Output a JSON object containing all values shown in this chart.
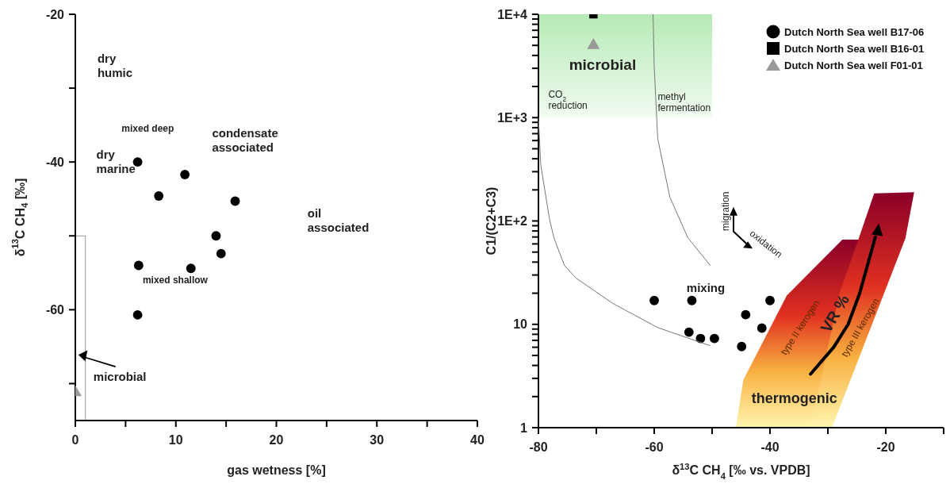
{
  "chart_data": [
    {
      "type": "scatter",
      "xlabel": "gas wetness [%]",
      "ylabel": "δ$^{13}$C CH$_{4}$ [‰]",
      "xlim": [
        0,
        40
      ],
      "xticks": [
        0,
        {
          "value": 5,
          "label": null
        },
        10,
        {
          "value": 15,
          "label": null
        },
        20,
        {
          "value": 25,
          "label": null
        },
        30,
        {
          "value": 35,
          "label": null
        },
        40
      ],
      "ylim": [
        -75,
        -20
      ],
      "yticks": [
        -20,
        {
          "value": -30,
          "label": null
        },
        -40,
        {
          "value": -50,
          "label": null
        },
        -60,
        {
          "value": -70,
          "label": null
        }
      ],
      "annotations": [
        "dry\nhumic",
        "mixed deep",
        "dry\nmarine",
        "condensate\nassociated",
        "oil\nassociated",
        "mixed shallow",
        "microbial"
      ],
      "series": [
        {
          "color": "#000000",
          "marker": "circle",
          "x": [
            6.2,
            10.9,
            8.3,
            15.9,
            14.0,
            14.5,
            6.3,
            11.5,
            6.2
          ],
          "values": [
            -40,
            -41.7,
            -44.6,
            -45.3,
            -50,
            -52.4,
            -54,
            -54.4,
            -60.7
          ]
        },
        {
          "color": "#999999",
          "marker": "triangle",
          "x": [
            0
          ],
          "values": [
            -71.2
          ]
        }
      ]
    },
    {
      "type": "scatter",
      "xlabel": "δ$^{13}$C CH$_{4}$ [‰ vs. VPDB]",
      "ylabel": "C1/(C2+C3)",
      "log": "y",
      "legend": "top right",
      "xlim": [
        -80,
        -10
      ],
      "xticks": [
        -80,
        {
          "value": -70,
          "label": null
        },
        -60,
        {
          "value": -50,
          "label": null
        },
        -40,
        {
          "value": -30,
          "label": null
        },
        -20,
        {
          "value": -10,
          "label": null
        }
      ],
      "ylim": [
        1,
        10000
      ],
      "yticks": [
        1,
        {
          "value": 2,
          "label": null
        },
        {
          "value": 3,
          "label": null
        },
        {
          "value": 4,
          "label": null
        },
        {
          "value": 5,
          "label": null
        },
        {
          "value": 6,
          "label": null
        },
        {
          "value": 7,
          "label": null
        },
        {
          "value": 8,
          "label": null
        },
        {
          "value": 9,
          "label": null
        },
        10,
        {
          "value": 20,
          "label": null
        },
        {
          "value": 30,
          "label": null
        },
        {
          "value": 40,
          "label": null
        },
        {
          "value": 50,
          "label": null
        },
        {
          "value": 60,
          "label": null
        },
        {
          "value": 70,
          "label": null
        },
        {
          "value": 80,
          "label": null
        },
        {
          "value": 90,
          "label": null
        },
        {
          "value": 100,
          "label": "1E+2"
        },
        {
          "value": 200,
          "label": null
        },
        {
          "value": 300,
          "label": null
        },
        {
          "value": 400,
          "label": null
        },
        {
          "value": 500,
          "label": null
        },
        {
          "value": 600,
          "label": null
        },
        {
          "value": 700,
          "label": null
        },
        {
          "value": 800,
          "label": null
        },
        {
          "value": 900,
          "label": null
        },
        {
          "value": 1000,
          "label": "1E+3"
        },
        {
          "value": 2000,
          "label": null
        },
        {
          "value": 3000,
          "label": null
        },
        {
          "value": 4000,
          "label": null
        },
        {
          "value": 5000,
          "label": null
        },
        {
          "value": 6000,
          "label": null
        },
        {
          "value": 7000,
          "label": null
        },
        {
          "value": 8000,
          "label": null
        },
        {
          "value": 9000,
          "label": null
        },
        {
          "value": 10000,
          "label": "1E+4"
        }
      ],
      "annotations": [
        "microbial",
        "CO$_{2}$\nreduction",
        "methyl\nfermentation",
        "migration",
        "oxidation",
        "mixing",
        "type II kerogen",
        "VR %",
        "type III kerogen",
        "thermogenic"
      ],
      "series": [
        {
          "name": "Dutch North Sea well B17-06",
          "color": "#000000",
          "marker": "circle",
          "x": [
            -60,
            -53.5,
            -40,
            -44.2,
            -54,
            -52,
            -49.6,
            -41.4,
            -44.9
          ],
          "values": [
            17,
            17,
            17,
            12.4,
            8.4,
            7.3,
            7.3,
            9.2,
            6.1
          ]
        },
        {
          "name": "Dutch North Sea well B16-01",
          "color": "#000000",
          "marker": "square",
          "x": [
            -70.5
          ],
          "values": [
            10000
          ]
        },
        {
          "name": "Dutch North Sea well F01-01",
          "color": "#999999",
          "marker": "triangle",
          "x": [
            -70.5
          ],
          "values": [
            5000
          ]
        },
        {
          "type": "line",
          "color": "#777777",
          "marker": "none",
          "x": [
            -80,
            -79.6,
            -78.1,
            -77.3,
            -75.5,
            -73.5,
            -67.2,
            -59.4,
            -50.3
          ],
          "values": [
            1000,
            350,
            105,
            68,
            37,
            28,
            16,
            9.3,
            6.2
          ]
        },
        {
          "type": "line",
          "color": "#777777",
          "marker": "none",
          "x": [
            -60.2,
            -60,
            -59.4,
            -57.3,
            -54.2,
            -50.3
          ],
          "values": [
            10000,
            3100,
            630,
            170,
            69,
            37
          ]
        }
      ]
    }
  ]
}
